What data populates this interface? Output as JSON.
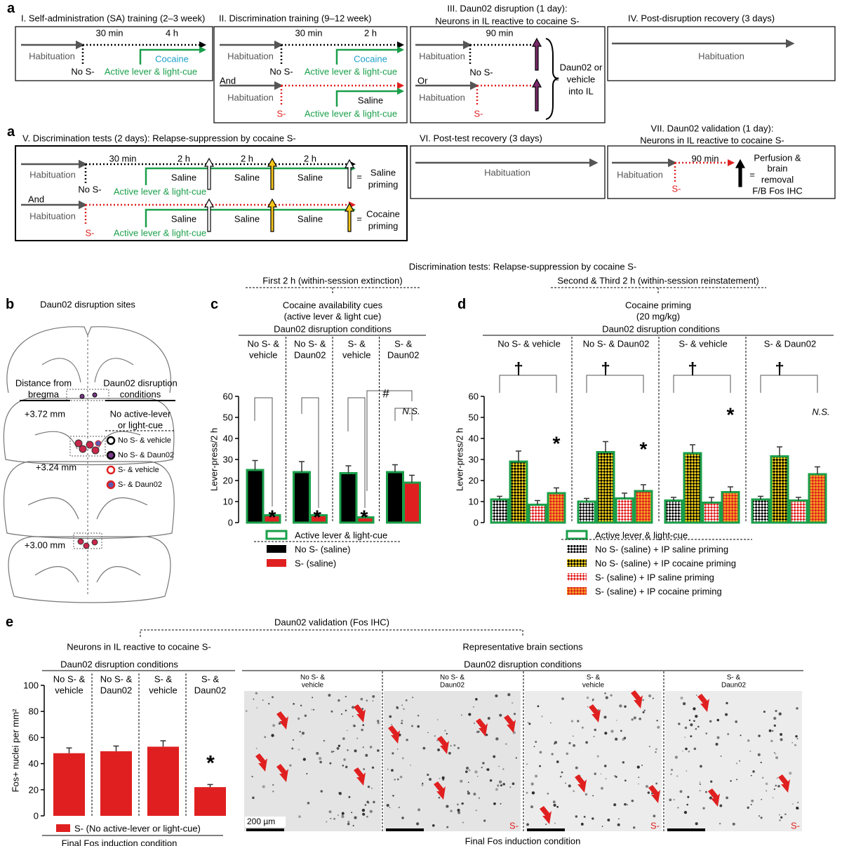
{
  "panel_a": {
    "labels": [
      "a",
      "a"
    ],
    "boxes": [
      {
        "title": [
          "I. Self-administration (SA) training (2–3 week)"
        ],
        "labels": [
          "Habituation",
          "30 min",
          "4 h",
          "Cocaine",
          "No S-",
          "Active lever & light-cue"
        ]
      },
      {
        "title": [
          "II. Discrimination training (9–12 week)"
        ],
        "labels": [
          "Habituation",
          "30 min",
          "2 h",
          "Cocaine",
          "No S-",
          "Active lever & light-cue",
          "And",
          "Habituation",
          "S-",
          "Saline",
          "Active lever & light-cue"
        ]
      },
      {
        "title": [
          "III. Daun02 disruption (1 day):",
          "Neurons in IL reactive to cocaine S-"
        ],
        "labels": [
          "Habituation",
          "90 min",
          "No S-",
          "Or",
          "Habituation",
          "S-",
          "=",
          "Daun02 or",
          "vehicle",
          "into IL"
        ]
      },
      {
        "title": [
          "IV. Post-disruption recovery (3 days)"
        ],
        "labels": [
          "Habituation"
        ]
      },
      {
        "title": [
          "V. Discrimination tests  (2 days): Relapse-suppression by cocaine S-"
        ],
        "labels": [
          "Habituation",
          "30 min",
          "2 h",
          "2 h",
          "2 h",
          "Saline",
          "Saline",
          "Saline",
          "No S-",
          "Active lever & light-cue",
          "And",
          "Habituation",
          "S-",
          "Saline",
          "Saline",
          "Saline",
          "Active lever & light-cue",
          "=",
          "Saline",
          "priming",
          "=",
          "Cocaine",
          "priming"
        ]
      },
      {
        "title": [
          "VI. Post-test recovery (3 days)"
        ],
        "labels": [
          "Habituation"
        ]
      },
      {
        "title": [
          "VII. Daun02 validation (1 day):",
          "Neurons in IL reactive to cocaine S-"
        ],
        "labels": [
          "Habituation",
          "90 min",
          "S-",
          "=",
          "Perfusion &",
          "brain",
          "removal",
          "F/B Fos IHC"
        ]
      }
    ]
  },
  "panel_b": {
    "label": "b",
    "title": "Daun02 disruption sites",
    "left_header": [
      "Distance from",
      "bregma"
    ],
    "right_header": [
      "Daun02 disruption",
      "conditions"
    ],
    "levels": [
      "+3.72 mm",
      "+3.24 mm",
      "+3.00 mm"
    ],
    "condition": [
      "No active-lever",
      "or light-cue"
    ],
    "legend": [
      "No S- & vehicle",
      "No S- & Daun02",
      "S- & vehicle",
      "S- & Daun02"
    ]
  },
  "tests_header": {
    "title": "Discrimination tests: Relapse-suppression by cocaine S-",
    "left": "First 2 h (within-session extinction)",
    "right": "Second & Third 2 h (within-session reinstatement)"
  },
  "chart_data": [
    {
      "type": "bar",
      "label": "c",
      "subtitle": [
        "Cocaine availability cues",
        "(active lever & light cue)"
      ],
      "group_title": "Daun02 disruption conditions",
      "categories": [
        [
          "No S- &",
          "vehicle"
        ],
        [
          "No S- &",
          "Daun02"
        ],
        [
          "S- &",
          "vehicle"
        ],
        [
          "S- &",
          "Daun02"
        ]
      ],
      "ylabel": "Lever-press/2 h",
      "ylim": [
        0,
        60
      ],
      "yticks": [
        0,
        10,
        20,
        30,
        40,
        50,
        60
      ],
      "outline": {
        "name": "Active lever & light-cue",
        "color": "#1a9f4a"
      },
      "series": [
        {
          "name": "No S- (saline)",
          "color": "#000000",
          "values": [
            25,
            24,
            23.5,
            24
          ],
          "errors": [
            4.5,
            5,
            3.5,
            3.5
          ]
        },
        {
          "name": "S- (saline)",
          "color": "#e02020",
          "values": [
            3.5,
            3.5,
            2.5,
            19
          ],
          "errors": [
            1,
            1,
            0.8,
            3.5
          ]
        }
      ],
      "annotations": [
        "*",
        "*",
        "*",
        "#",
        "N.S."
      ]
    },
    {
      "type": "bar",
      "label": "d",
      "subtitle": [
        "Cocaine priming",
        "(20 mg/kg)"
      ],
      "group_title": "Daun02 disruption conditions",
      "categories": [
        "No S- & vehicle",
        "No S- & Daun02",
        "S- & vehicle",
        "S- & Daun02"
      ],
      "ylabel": "Lever-press/2 h",
      "ylim": [
        0,
        60
      ],
      "yticks": [
        0,
        10,
        20,
        30,
        40,
        50,
        60
      ],
      "outline": {
        "name": "Active lever & light-cue",
        "color": "#1a9f4a"
      },
      "series": [
        {
          "name": "No S- (saline) + IP saline priming",
          "color": "#000000",
          "color2": "#ffffff",
          "values": [
            11,
            10,
            10.5,
            11
          ],
          "errors": [
            1.5,
            1.5,
            1.5,
            1.5
          ]
        },
        {
          "name": "No S- (saline) + IP cocaine priming",
          "color": "#000000",
          "color2": "#f2d21b",
          "values": [
            29,
            33.5,
            33,
            31.5
          ],
          "errors": [
            5,
            5,
            4,
            4.5
          ]
        },
        {
          "name": "S- (saline) + IP saline priming",
          "color": "#e02020",
          "color2": "#ffffff",
          "values": [
            8.5,
            11.5,
            9.5,
            10.5
          ],
          "errors": [
            2,
            2.5,
            2.5,
            1.5
          ]
        },
        {
          "name": "S- (saline) + IP cocaine priming",
          "color": "#e02020",
          "color2": "#f5a623",
          "values": [
            14,
            15,
            14.5,
            23
          ],
          "errors": [
            2.5,
            3,
            2.5,
            3.5
          ]
        }
      ],
      "annotations": [
        "†",
        "†",
        "†",
        "†",
        "*",
        "*",
        "*",
        "N.S."
      ]
    },
    {
      "type": "bar",
      "label": "e",
      "header": "Daun02 validation (Fos IHC)",
      "subtitle": [
        "Neurons in IL reactive to cocaine S-"
      ],
      "group_title": "Daun02 disruption conditions",
      "categories": [
        [
          "No S- &",
          "vehicle"
        ],
        [
          "No S- &",
          "Daun02"
        ],
        [
          "S- &",
          "vehicle"
        ],
        [
          "S- &",
          "Daun02"
        ]
      ],
      "ylabel": "Fos+ nuclei per mm²",
      "ylim": [
        0,
        100
      ],
      "yticks": [
        0,
        20,
        40,
        60,
        80,
        100
      ],
      "series": [
        {
          "name": "S- (No active-lever or light-cue)",
          "color": "#e02020",
          "values": [
            48,
            49.5,
            53,
            22
          ],
          "errors": [
            4,
            4,
            4.5,
            2
          ]
        }
      ],
      "legend_title": "Final Fos induction condition",
      "annotations": [
        "*"
      ]
    }
  ],
  "panel_e_images": {
    "title": "Representative brain sections",
    "group_title": "Daun02 disruption conditions",
    "labels": [
      [
        "No S- &",
        "vehicle"
      ],
      [
        "No S- &",
        "Daun02"
      ],
      [
        "S- &",
        "vehicle"
      ],
      [
        "S- &",
        "Daun02"
      ]
    ],
    "markers": [
      "S-",
      "S-",
      "S-"
    ],
    "scale": "200 µm",
    "footer": "Final Fos induction condition"
  }
}
